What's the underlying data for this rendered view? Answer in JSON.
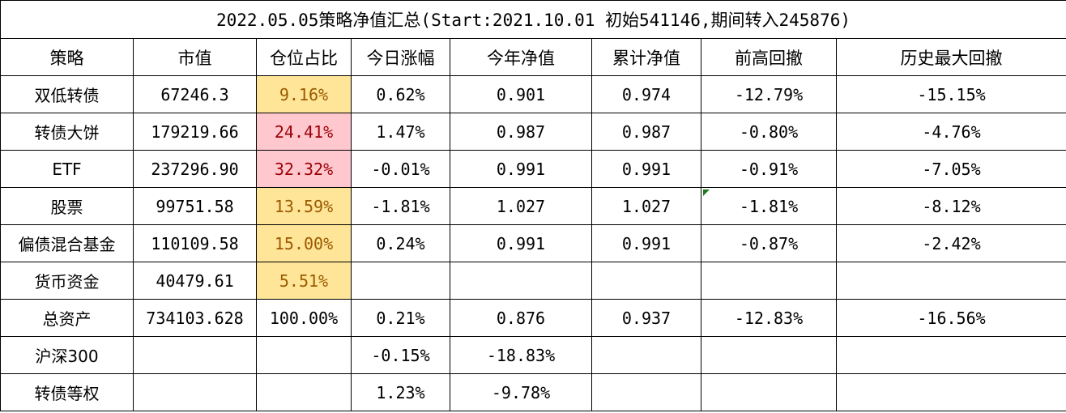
{
  "title": "2022.05.05策略净值汇总(Start:2021.10.01 初始541146,期间转入245876)",
  "headers": [
    "策略",
    "市值",
    "仓位占比",
    "今日涨幅",
    "今年净值",
    "累计净值",
    "前高回撤",
    "历史最大回撤"
  ],
  "rows": [
    [
      "双低转债",
      "67246.3",
      "9.16%",
      "0.62%",
      "0.901",
      "0.974",
      "-12.79%",
      "-15.15%"
    ],
    [
      "转债大饼",
      "179219.66",
      "24.41%",
      "1.47%",
      "0.987",
      "0.987",
      "-0.80%",
      "-4.76%"
    ],
    [
      "ETF",
      "237296.90",
      "32.32%",
      "-0.01%",
      "0.991",
      "0.991",
      "-0.91%",
      "-7.05%"
    ],
    [
      "股票",
      "99751.58",
      "13.59%",
      "-1.81%",
      "1.027",
      "1.027",
      "-1.81%",
      "-8.12%"
    ],
    [
      "偏债混合基金",
      "110109.58",
      "15.00%",
      "0.24%",
      "0.991",
      "0.991",
      "-0.87%",
      "-2.42%"
    ],
    [
      "货币资金",
      "40479.61",
      "5.51%",
      "",
      "",
      "",
      "",
      ""
    ],
    [
      "总资产",
      "734103.628",
      "100.00%",
      "0.21%",
      "0.876",
      "0.937",
      "-12.83%",
      "-16.56%"
    ],
    [
      "沪深300",
      "",
      "",
      "-0.15%",
      "-18.83%",
      "",
      "",
      ""
    ],
    [
      "转债等权",
      "",
      "",
      "1.23%",
      "-9.78%",
      "",
      "",
      ""
    ]
  ],
  "highlight_colors": {
    "yellow_fill": "#fee598",
    "yellow_text": "#9b5a00",
    "red_fill": "#ffc7ce",
    "red_text": "#9c0006"
  }
}
